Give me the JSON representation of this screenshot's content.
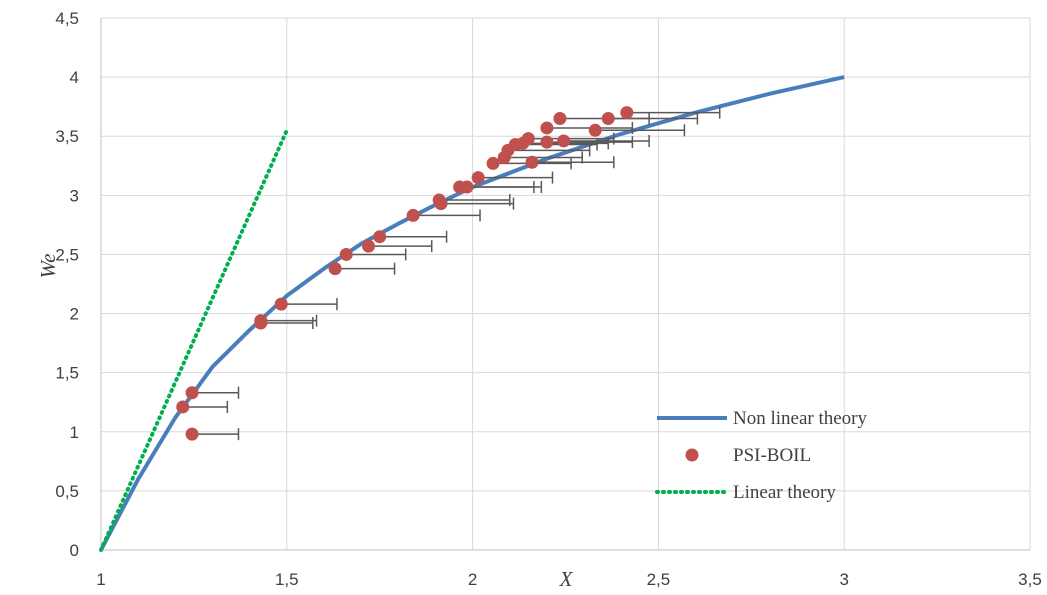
{
  "chart_data": {
    "type": "scatter",
    "xlabel": "X",
    "ylabel": "We",
    "xlim": [
      1,
      3.5
    ],
    "ylim": [
      0,
      4.5
    ],
    "x_ticks": [
      "1",
      "1,5",
      "2",
      "2,5",
      "3",
      "3,5"
    ],
    "y_ticks": [
      "0",
      "0,5",
      "1",
      "1,5",
      "2",
      "2,5",
      "3",
      "3,5",
      "4",
      "4,5"
    ],
    "grid": "vertical and horizontal major gridlines",
    "legend_position": "bottom-right",
    "series": [
      {
        "name": "Non linear theory",
        "kind": "line",
        "color": "#4a7ebb",
        "points": [
          [
            1,
            0
          ],
          [
            1.1,
            0.6
          ],
          [
            1.2,
            1.12
          ],
          [
            1.3,
            1.55
          ],
          [
            1.4,
            1.86
          ],
          [
            1.5,
            2.15
          ],
          [
            1.6,
            2.38
          ],
          [
            1.7,
            2.59
          ],
          [
            1.8,
            2.76
          ],
          [
            1.9,
            2.92
          ],
          [
            2.0,
            3.07
          ],
          [
            2.2,
            3.31
          ],
          [
            2.4,
            3.52
          ],
          [
            2.6,
            3.7
          ],
          [
            2.8,
            3.86
          ],
          [
            3.0,
            4.0
          ]
        ]
      },
      {
        "name": "PSI-BOIL",
        "kind": "scatter",
        "color": "#c0504d",
        "error_bar_color": "#595959",
        "points": [
          {
            "x": 1.245,
            "y": 0.98,
            "xerr": 0.125
          },
          {
            "x": 1.22,
            "y": 1.21,
            "xerr": 0.12
          },
          {
            "x": 1.245,
            "y": 1.33,
            "xerr": 0.125
          },
          {
            "x": 1.43,
            "y": 1.92,
            "xerr": 0.14
          },
          {
            "x": 1.43,
            "y": 1.94,
            "xerr": 0.15
          },
          {
            "x": 1.485,
            "y": 2.08,
            "xerr": 0.15
          },
          {
            "x": 1.63,
            "y": 2.38,
            "xerr": 0.16
          },
          {
            "x": 1.66,
            "y": 2.5,
            "xerr": 0.16
          },
          {
            "x": 1.72,
            "y": 2.57,
            "xerr": 0.17
          },
          {
            "x": 1.75,
            "y": 2.65,
            "xerr": 0.18
          },
          {
            "x": 1.84,
            "y": 2.83,
            "xerr": 0.18
          },
          {
            "x": 1.91,
            "y": 2.96,
            "xerr": 0.19
          },
          {
            "x": 1.915,
            "y": 2.93,
            "xerr": 0.195
          },
          {
            "x": 1.965,
            "y": 3.07,
            "xerr": 0.2
          },
          {
            "x": 1.985,
            "y": 3.07,
            "xerr": 0.2
          },
          {
            "x": 2.015,
            "y": 3.15,
            "xerr": 0.2
          },
          {
            "x": 2.055,
            "y": 3.27,
            "xerr": 0.21
          },
          {
            "x": 2.085,
            "y": 3.32,
            "xerr": 0.21
          },
          {
            "x": 2.095,
            "y": 3.38,
            "xerr": 0.22
          },
          {
            "x": 2.115,
            "y": 3.43,
            "xerr": 0.22
          },
          {
            "x": 2.135,
            "y": 3.44,
            "xerr": 0.23
          },
          {
            "x": 2.15,
            "y": 3.48,
            "xerr": 0.23
          },
          {
            "x": 2.16,
            "y": 3.28,
            "xerr": 0.22
          },
          {
            "x": 2.2,
            "y": 3.45,
            "xerr": 0.23
          },
          {
            "x": 2.2,
            "y": 3.57,
            "xerr": 0.23
          },
          {
            "x": 2.235,
            "y": 3.65,
            "xerr": 0.24
          },
          {
            "x": 2.245,
            "y": 3.46,
            "xerr": 0.23
          },
          {
            "x": 2.33,
            "y": 3.55,
            "xerr": 0.24
          },
          {
            "x": 2.365,
            "y": 3.65,
            "xerr": 0.24
          },
          {
            "x": 2.415,
            "y": 3.7,
            "xerr": 0.25
          }
        ]
      },
      {
        "name": "Linear theory",
        "kind": "line",
        "style": "dotted",
        "color": "#00b050",
        "points": [
          [
            1,
            0
          ],
          [
            1.5,
            3.55
          ]
        ]
      }
    ]
  }
}
